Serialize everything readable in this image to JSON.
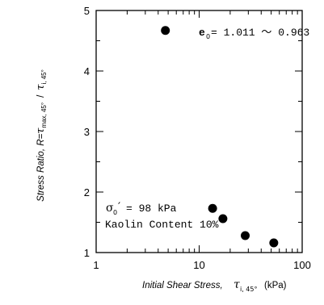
{
  "chart_data": {
    "type": "scatter",
    "xscale": "log",
    "xlim": [
      1,
      100
    ],
    "ylim": [
      1,
      5
    ],
    "x_ticks": [
      1,
      10,
      100
    ],
    "x_tick_labels": [
      "1",
      "10",
      "100"
    ],
    "y_ticks": [
      1,
      2,
      3,
      4,
      5
    ],
    "y_tick_labels": [
      "1",
      "2",
      "3",
      "4",
      "5"
    ],
    "points": [
      {
        "x": 4.7,
        "y": 4.67
      },
      {
        "x": 13.5,
        "y": 1.73
      },
      {
        "x": 17.0,
        "y": 1.56
      },
      {
        "x": 28.0,
        "y": 1.28
      },
      {
        "x": 53.0,
        "y": 1.16
      }
    ],
    "xlabel": {
      "prefix": "Initial Shear Stress,",
      "symbol": "τ",
      "subscript": "i, 45°",
      "unit": "(kPa)"
    },
    "ylabel": {
      "prefix": "Stress Ratio, R=",
      "symbol1": "τ",
      "subscript1": "max, 45°",
      "slash": "/",
      "symbol2": "τ",
      "subscript2": "i, 45°"
    },
    "annotations": {
      "void_ratio": {
        "symbol": "e",
        "subscript": "0",
        "text": "= 1.011 ～ 0.963"
      },
      "sigma": {
        "symbol": "σ",
        "subscript": "0",
        "prime": "′",
        "text": "= 98 kPa"
      },
      "kaolin": "Kaolin Content 10%"
    },
    "grid": false,
    "legend": "none",
    "marker_color": "#000000"
  }
}
